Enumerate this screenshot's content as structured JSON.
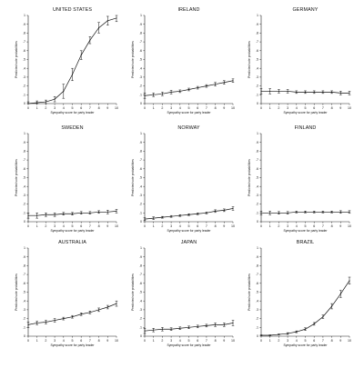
{
  "chart_data": [
    {
      "type": "line",
      "title": "UNITED STATES",
      "xlabel": "Sympathy score for party leader",
      "ylabel": "Predicted vote probabilities",
      "x": [
        0,
        1,
        2,
        3,
        4,
        5,
        6,
        7,
        8,
        9,
        10
      ],
      "series": [
        {
          "values": [
            0.0,
            0.01,
            0.02,
            0.05,
            0.14,
            0.33,
            0.55,
            0.72,
            0.86,
            0.94,
            0.97
          ],
          "error": [
            0.02,
            0.02,
            0.02,
            0.03,
            0.08,
            0.07,
            0.05,
            0.04,
            0.06,
            0.05,
            0.04
          ]
        }
      ],
      "xticks": [
        "0",
        "1",
        "2",
        "3",
        "4",
        "5",
        "6",
        "7",
        "8",
        "9",
        "10"
      ],
      "yticks": [
        "0",
        ".1",
        ".2",
        ".3",
        ".4",
        ".5",
        ".6",
        ".7",
        ".8",
        ".9",
        "1"
      ],
      "xlim": [
        0,
        10
      ],
      "ylim": [
        0,
        1
      ]
    },
    {
      "type": "line",
      "title": "IRELAND",
      "xlabel": "Sympathy score for party leader",
      "ylabel": "Predicted vote probabilities",
      "x": [
        0,
        1,
        2,
        3,
        4,
        5,
        6,
        7,
        8,
        9,
        10
      ],
      "series": [
        {
          "values": [
            0.09,
            0.1,
            0.11,
            0.13,
            0.14,
            0.16,
            0.18,
            0.2,
            0.22,
            0.24,
            0.26
          ],
          "error": [
            0.03,
            0.02,
            0.02,
            0.02,
            0.015,
            0.015,
            0.015,
            0.015,
            0.02,
            0.02,
            0.02
          ]
        }
      ],
      "xticks": [
        "0",
        "1",
        "2",
        "3",
        "4",
        "5",
        "6",
        "7",
        "8",
        "9",
        "10"
      ],
      "yticks": [
        "0",
        ".1",
        ".2",
        ".3",
        ".4",
        ".5",
        ".6",
        ".7",
        ".8",
        ".9",
        "1"
      ],
      "xlim": [
        0,
        10
      ],
      "ylim": [
        0,
        1
      ]
    },
    {
      "type": "line",
      "title": "GERMANY",
      "xlabel": "Sympathy score for party leader",
      "ylabel": "Predicted vote probabilities",
      "x": [
        0,
        1,
        2,
        3,
        4,
        5,
        6,
        7,
        8,
        9,
        10
      ],
      "series": [
        {
          "values": [
            0.14,
            0.14,
            0.14,
            0.14,
            0.13,
            0.13,
            0.13,
            0.13,
            0.13,
            0.12,
            0.12
          ],
          "error": [
            0.03,
            0.03,
            0.02,
            0.02,
            0.015,
            0.015,
            0.015,
            0.015,
            0.015,
            0.02,
            0.02
          ]
        }
      ],
      "xticks": [
        "0",
        "1",
        "2",
        "3",
        "4",
        "5",
        "6",
        "7",
        "8",
        "9",
        "10"
      ],
      "yticks": [
        "0",
        ".1",
        ".2",
        ".3",
        ".4",
        ".5",
        ".6",
        ".7",
        ".8",
        ".9",
        "1"
      ],
      "xlim": [
        0,
        10
      ],
      "ylim": [
        0,
        1
      ]
    },
    {
      "type": "line",
      "title": "SWEDEN",
      "xlabel": "Sympathy score for party leader",
      "ylabel": "Predicted vote probabilities",
      "x": [
        0,
        1,
        2,
        3,
        4,
        5,
        6,
        7,
        8,
        9,
        10
      ],
      "series": [
        {
          "values": [
            0.07,
            0.07,
            0.08,
            0.08,
            0.09,
            0.09,
            0.1,
            0.1,
            0.11,
            0.11,
            0.12
          ],
          "error": [
            0.03,
            0.03,
            0.02,
            0.02,
            0.015,
            0.015,
            0.015,
            0.015,
            0.015,
            0.02,
            0.02
          ]
        }
      ],
      "xticks": [
        "0",
        "1",
        "2",
        "3",
        "4",
        "5",
        "6",
        "7",
        "8",
        "9",
        "10"
      ],
      "yticks": [
        "0",
        ".1",
        ".2",
        ".3",
        ".4",
        ".5",
        ".6",
        ".7",
        ".8",
        ".9",
        "1"
      ],
      "xlim": [
        0,
        10
      ],
      "ylim": [
        0,
        1
      ]
    },
    {
      "type": "line",
      "title": "NORWAY",
      "xlabel": "Sympathy score for party leader",
      "ylabel": "Predicted vote probabilities",
      "x": [
        0,
        1,
        2,
        3,
        4,
        5,
        6,
        7,
        8,
        9,
        10
      ],
      "series": [
        {
          "values": [
            0.03,
            0.04,
            0.05,
            0.06,
            0.07,
            0.08,
            0.09,
            0.1,
            0.12,
            0.13,
            0.15
          ],
          "error": [
            0.015,
            0.015,
            0.01,
            0.01,
            0.01,
            0.01,
            0.01,
            0.01,
            0.015,
            0.015,
            0.02
          ]
        }
      ],
      "xticks": [
        "0",
        "1",
        "2",
        "3",
        "4",
        "5",
        "6",
        "7",
        "8",
        "9",
        "10"
      ],
      "yticks": [
        "0",
        ".1",
        ".2",
        ".3",
        ".4",
        ".5",
        ".6",
        ".7",
        ".8",
        ".9",
        "1"
      ],
      "xlim": [
        0,
        10
      ],
      "ylim": [
        0,
        1
      ]
    },
    {
      "type": "line",
      "title": "FINLAND",
      "xlabel": "Sympathy score for party leader",
      "ylabel": "Predicted vote probabilities",
      "x": [
        0,
        1,
        2,
        3,
        4,
        5,
        6,
        7,
        8,
        9,
        10
      ],
      "series": [
        {
          "values": [
            0.1,
            0.1,
            0.1,
            0.1,
            0.11,
            0.11,
            0.11,
            0.11,
            0.11,
            0.11,
            0.11
          ],
          "error": [
            0.02,
            0.02,
            0.015,
            0.015,
            0.01,
            0.01,
            0.01,
            0.01,
            0.01,
            0.015,
            0.015
          ]
        }
      ],
      "xticks": [
        "0",
        "1",
        "2",
        "3",
        "4",
        "5",
        "6",
        "7",
        "8",
        "9",
        "10"
      ],
      "yticks": [
        "0",
        ".1",
        ".2",
        ".3",
        ".4",
        ".5",
        ".6",
        ".7",
        ".8",
        ".9",
        "1"
      ],
      "xlim": [
        0,
        10
      ],
      "ylim": [
        0,
        1
      ]
    },
    {
      "type": "line",
      "title": "AUSTRALIA",
      "xlabel": "Sympathy score for party leader",
      "ylabel": "Predicted vote probabilities",
      "x": [
        0,
        1,
        2,
        3,
        4,
        5,
        6,
        7,
        8,
        9,
        10
      ],
      "series": [
        {
          "values": [
            0.13,
            0.15,
            0.16,
            0.18,
            0.2,
            0.22,
            0.25,
            0.27,
            0.3,
            0.33,
            0.37
          ],
          "error": [
            0.03,
            0.02,
            0.02,
            0.02,
            0.015,
            0.015,
            0.015,
            0.015,
            0.02,
            0.02,
            0.03
          ]
        }
      ],
      "xticks": [
        "0",
        "1",
        "2",
        "3",
        "4",
        "5",
        "6",
        "7",
        "8",
        "9",
        "10"
      ],
      "yticks": [
        "0",
        ".1",
        ".2",
        ".3",
        ".4",
        ".5",
        ".6",
        ".7",
        ".8",
        ".9",
        "1"
      ],
      "xlim": [
        0,
        10
      ],
      "ylim": [
        0,
        1
      ]
    },
    {
      "type": "line",
      "title": "JAPAN",
      "xlabel": "Sympathy score for party leader",
      "ylabel": "Predicted vote probabilities",
      "x": [
        0,
        1,
        2,
        3,
        4,
        5,
        6,
        7,
        8,
        9,
        10
      ],
      "series": [
        {
          "values": [
            0.06,
            0.07,
            0.08,
            0.08,
            0.09,
            0.1,
            0.11,
            0.12,
            0.13,
            0.13,
            0.15
          ],
          "error": [
            0.03,
            0.02,
            0.02,
            0.015,
            0.015,
            0.015,
            0.015,
            0.015,
            0.02,
            0.02,
            0.03
          ]
        }
      ],
      "xticks": [
        "0",
        "1",
        "2",
        "3",
        "4",
        "5",
        "6",
        "7",
        "8",
        "9",
        "10"
      ],
      "yticks": [
        "0",
        ".1",
        ".2",
        ".3",
        ".4",
        ".5",
        ".6",
        ".7",
        ".8",
        ".9",
        "1"
      ],
      "xlim": [
        0,
        10
      ],
      "ylim": [
        0,
        1
      ]
    },
    {
      "type": "line",
      "title": "BRAZIL",
      "xlabel": "Sympathy score for party leader",
      "ylabel": "Predicted vote probabilities",
      "x": [
        0,
        1,
        2,
        3,
        4,
        5,
        6,
        7,
        8,
        9,
        10
      ],
      "series": [
        {
          "values": [
            0.01,
            0.01,
            0.02,
            0.03,
            0.05,
            0.08,
            0.14,
            0.22,
            0.34,
            0.48,
            0.63
          ],
          "error": [
            0.005,
            0.005,
            0.005,
            0.01,
            0.01,
            0.015,
            0.015,
            0.02,
            0.03,
            0.04,
            0.04
          ]
        }
      ],
      "xticks": [
        "0",
        "1",
        "2",
        "3",
        "4",
        "5",
        "6",
        "7",
        "8",
        "9",
        "10"
      ],
      "yticks": [
        "0",
        ".1",
        ".2",
        ".3",
        ".4",
        ".5",
        ".6",
        ".7",
        ".8",
        ".9",
        "1"
      ],
      "xlim": [
        0,
        10
      ],
      "ylim": [
        0,
        1
      ]
    }
  ]
}
